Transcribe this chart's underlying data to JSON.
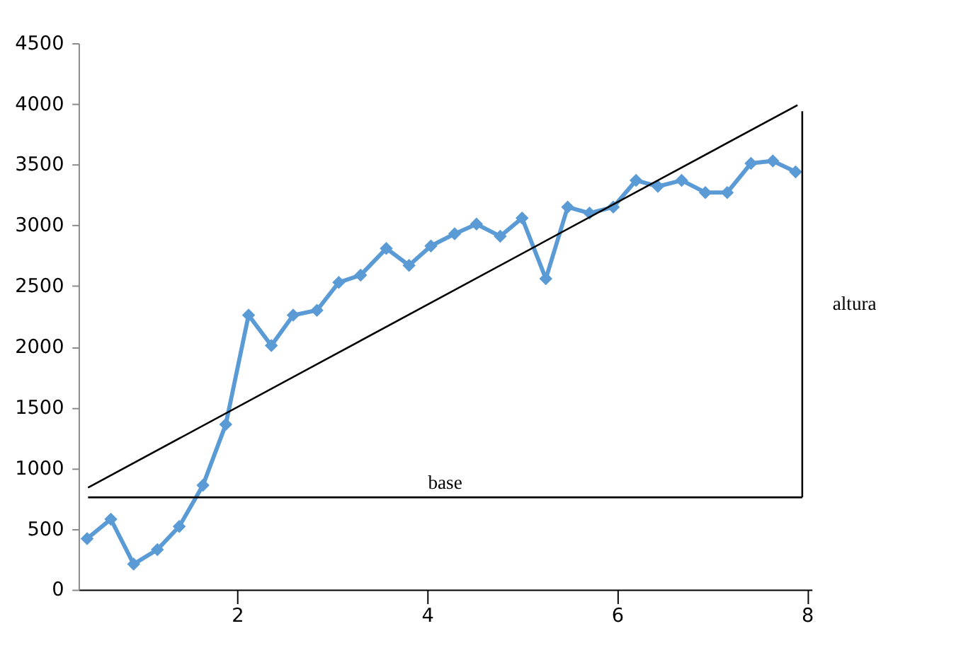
{
  "chart_data": {
    "type": "line",
    "xlim": [
      0.33,
      8.05
    ],
    "xticks": [
      2,
      4,
      6,
      8
    ],
    "ylim": [
      0,
      4500
    ],
    "yticks": [
      0,
      500,
      1000,
      1500,
      2000,
      2500,
      3000,
      3500,
      4000,
      4500
    ],
    "grid": false,
    "series": [
      {
        "color": "#5b9bd5",
        "marker": "diamond",
        "x": [
          0.42,
          0.67,
          0.91,
          1.16,
          1.39,
          1.64,
          1.88,
          2.12,
          2.36,
          2.59,
          2.84,
          3.07,
          3.3,
          3.57,
          3.81,
          4.04,
          4.29,
          4.52,
          4.77,
          5.0,
          5.25,
          5.48,
          5.71,
          5.96,
          6.2,
          6.43,
          6.68,
          6.93,
          7.16,
          7.41,
          7.64,
          7.88
        ],
        "values": [
          420,
          580,
          210,
          330,
          520,
          860,
          1360,
          2260,
          2010,
          2260,
          2300,
          2530,
          2590,
          2810,
          2670,
          2830,
          2930,
          3010,
          2910,
          3060,
          2560,
          3150,
          3100,
          3150,
          3370,
          3320,
          3370,
          3270,
          3270,
          3510,
          3530,
          3440
        ]
      },
      {
        "color": "#000000",
        "marker": "none",
        "x": [
          0.43,
          7.9
        ],
        "values": [
          840,
          3990
        ]
      },
      {
        "name": "base",
        "color": "#000000",
        "marker": "none",
        "x": [
          0.43,
          7.95
        ],
        "values": [
          760,
          760
        ]
      },
      {
        "name": "altura",
        "color": "#000000",
        "marker": "none",
        "x": [
          7.95,
          7.95
        ],
        "values": [
          760,
          3940
        ]
      }
    ]
  }
}
